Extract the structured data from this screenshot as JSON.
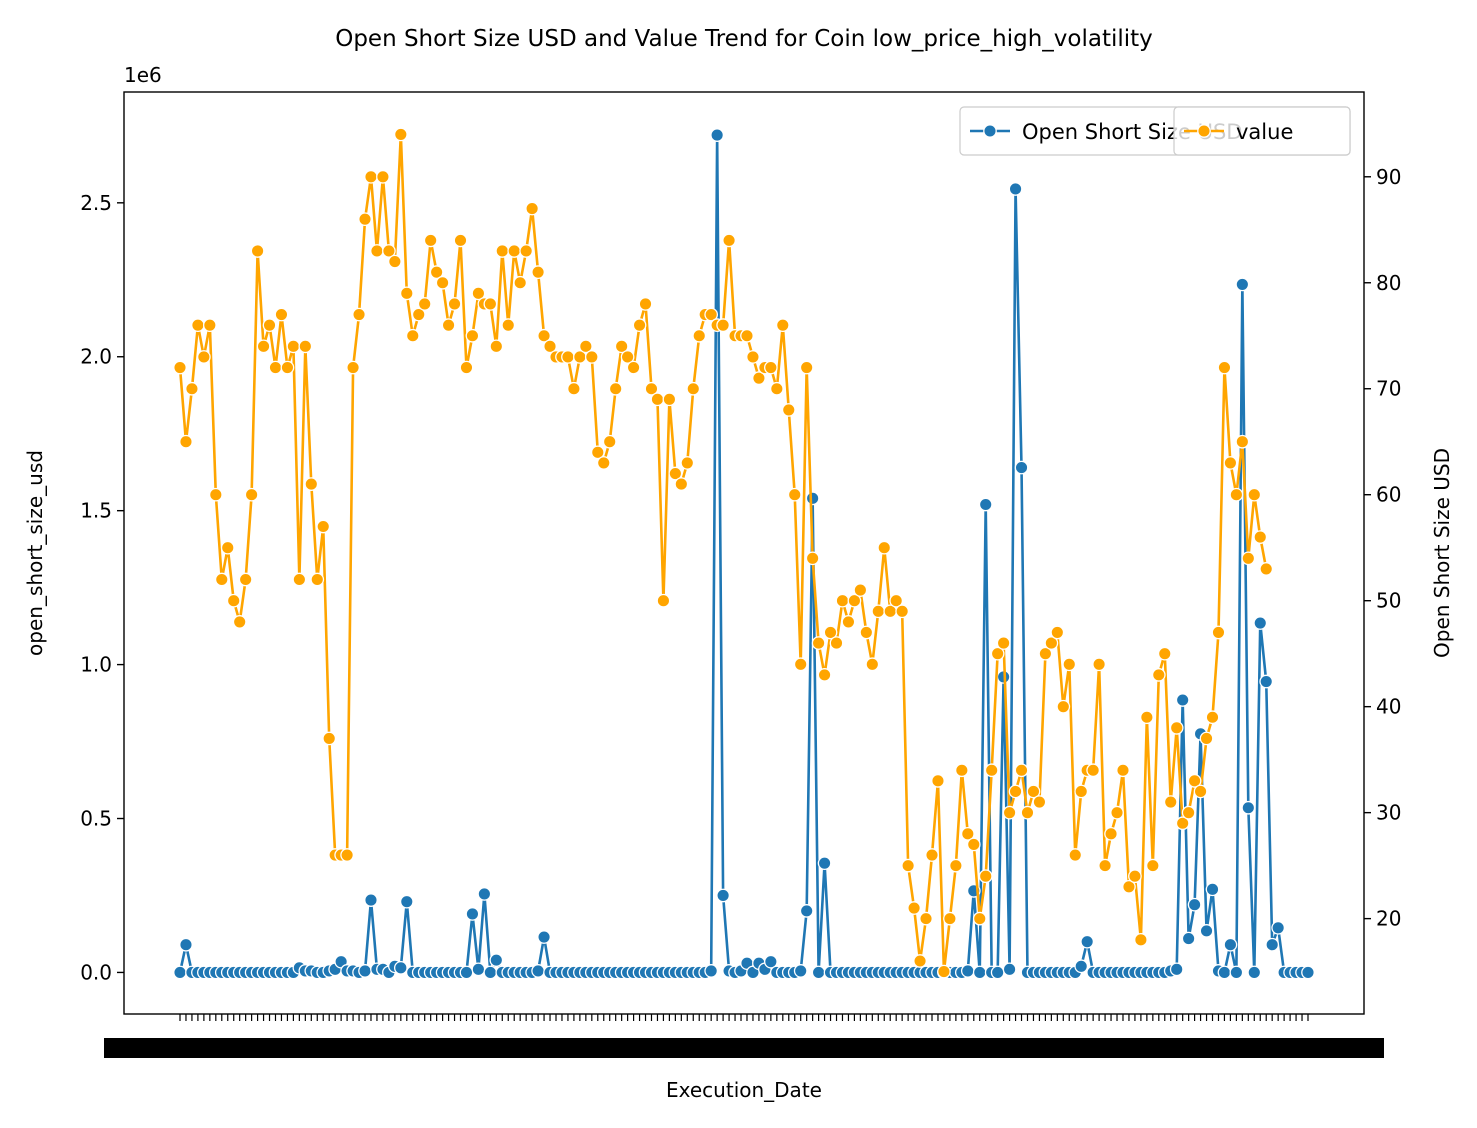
{
  "chart_data": {
    "type": "line",
    "title": "Open Short Size USD and Value Trend for Coin low_price_high_volatility",
    "xlabel": "Execution_Date",
    "ylabel_left": "open_short_size_usd",
    "ylabel_right": "Open Short Size USD",
    "left_axis": {
      "offset_label": "1e6",
      "scale": 1000000,
      "ylim": [
        -135000,
        2860000
      ],
      "ticks": [
        0.0,
        0.5,
        1.0,
        1.5,
        2.0,
        2.5
      ],
      "tick_labels": [
        "0.0",
        "0.5",
        "1.0",
        "1.5",
        "2.0",
        "2.5"
      ]
    },
    "right_axis": {
      "ylim": [
        11.0,
        98.0
      ],
      "ticks": [
        20,
        30,
        40,
        50,
        60,
        70,
        80,
        90
      ],
      "tick_labels": [
        "20",
        "30",
        "40",
        "50",
        "60",
        "70",
        "80",
        "90"
      ]
    },
    "x_tick_labels_note": "",
    "series": [
      {
        "name": "Open Short Size USD",
        "color": "#1f77b4",
        "axis": "left",
        "values": [
          0,
          90000,
          0,
          0,
          0,
          0,
          0,
          0,
          0,
          0,
          0,
          0,
          0,
          0,
          0,
          0,
          0,
          0,
          0,
          0,
          15000,
          5000,
          5000,
          0,
          0,
          5000,
          10000,
          35000,
          5000,
          5000,
          0,
          5000,
          235000,
          10000,
          10000,
          0,
          20000,
          15000,
          230000,
          0,
          0,
          0,
          0,
          0,
          0,
          0,
          0,
          0,
          0,
          190000,
          10000,
          255000,
          0,
          40000,
          0,
          0,
          0,
          0,
          0,
          0,
          5000,
          115000,
          0,
          0,
          0,
          0,
          0,
          0,
          0,
          0,
          0,
          0,
          0,
          0,
          0,
          0,
          0,
          0,
          0,
          0,
          0,
          0,
          0,
          0,
          0,
          0,
          0,
          0,
          0,
          5000,
          2720000,
          250000,
          5000,
          0,
          5000,
          30000,
          0,
          30000,
          10000,
          35000,
          0,
          0,
          0,
          0,
          5000,
          200000,
          1540000,
          0,
          355000,
          0,
          0,
          0,
          0,
          0,
          0,
          0,
          0,
          0,
          0,
          0,
          0,
          0,
          0,
          0,
          0,
          0,
          0,
          0,
          0,
          0,
          0,
          0,
          5000,
          265000,
          0,
          1520000,
          0,
          0,
          960000,
          10000,
          2545000,
          1640000,
          0,
          0,
          0,
          0,
          0,
          0,
          0,
          0,
          0,
          20000,
          100000,
          0,
          0,
          0,
          0,
          0,
          0,
          0,
          0,
          0,
          0,
          0,
          0,
          0,
          5000,
          10000,
          885000,
          110000,
          220000,
          775000,
          135000,
          270000,
          5000,
          0,
          90000,
          0,
          2235000,
          535000,
          0,
          1135000,
          945000,
          90000,
          145000,
          0,
          0,
          0,
          0,
          0
        ]
      },
      {
        "name": "value",
        "color": "#ffa500",
        "axis": "right",
        "values": [
          72,
          65,
          70,
          76,
          73,
          76,
          60,
          52,
          55,
          50,
          48,
          52,
          60,
          83,
          74,
          76,
          72,
          77,
          72,
          74,
          52,
          74,
          61,
          52,
          57,
          37,
          26,
          26,
          26,
          72,
          77,
          86,
          90,
          83,
          90,
          83,
          82,
          94,
          79,
          75,
          77,
          78,
          84,
          81,
          80,
          76,
          78,
          84,
          72,
          75,
          79,
          78,
          78,
          74,
          83,
          76,
          83,
          80,
          83,
          87,
          81,
          75,
          74,
          73,
          73,
          73,
          70,
          73,
          74,
          73,
          64,
          63,
          65,
          70,
          74,
          73,
          72,
          76,
          78,
          70,
          69,
          50,
          69,
          62,
          61,
          63,
          70,
          75,
          77,
          77,
          76,
          76,
          84,
          75,
          75,
          75,
          73,
          71,
          72,
          72,
          70,
          76,
          68,
          60,
          44,
          72,
          54,
          46,
          43,
          47,
          46,
          50,
          48,
          50,
          51,
          47,
          44,
          49,
          55,
          49,
          50,
          49,
          25,
          21,
          16,
          20,
          26,
          33,
          15,
          20,
          25,
          34,
          28,
          27,
          20,
          24,
          34,
          45,
          46,
          30,
          32,
          34,
          30,
          32,
          31,
          45,
          46,
          47,
          40,
          44,
          26,
          32,
          34,
          34,
          44,
          25,
          28,
          30,
          34,
          23,
          24,
          18,
          39,
          25,
          43,
          45,
          31,
          38,
          29,
          30,
          33,
          32,
          37,
          39,
          47,
          72,
          63,
          60,
          65,
          54,
          60,
          56,
          53
        ]
      }
    ],
    "legend": {
      "placement": "top-right",
      "entries": [
        "Open Short Size USD",
        "value"
      ]
    },
    "grid": false
  }
}
